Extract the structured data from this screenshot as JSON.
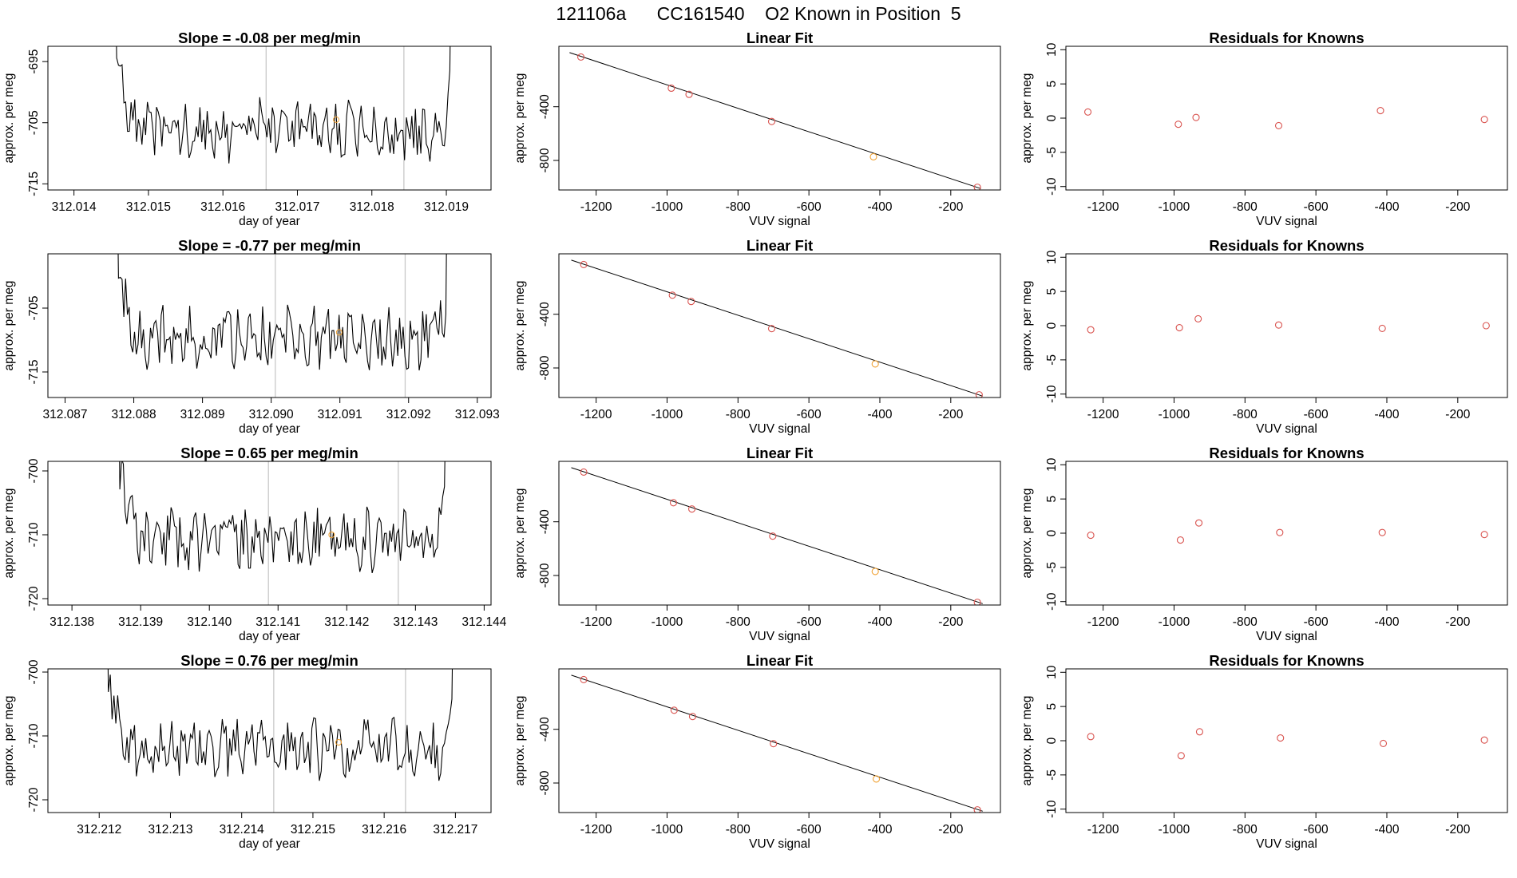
{
  "page_title": "121106a      CC161540    O2 Known in Position  5",
  "colors": {
    "known": "#d9534f",
    "highlight": "#f0a030",
    "trace": "#000000",
    "marker": "#c8c8c8"
  },
  "chart_data": [
    {
      "type": "line",
      "title": "Slope =  -0.08  per meg/min",
      "xlabel": "day of year",
      "ylabel": "approx. per meg",
      "xlim": [
        312.01365,
        312.0196
      ],
      "ylim": [
        -716,
        -692.5
      ],
      "xticks": [
        312.014,
        312.015,
        312.016,
        312.017,
        312.018,
        312.019
      ],
      "xtick_labels": [
        "312.014",
        "312.015",
        "312.016",
        "312.017",
        "312.018",
        "312.019"
      ],
      "yticks": [
        -695,
        -705,
        -715
      ],
      "ytick_labels": [
        "-695",
        "-705",
        "-715"
      ],
      "x_start": 312.0145,
      "x_end": 312.01912,
      "base": -706.2,
      "markers": [
        312.01658,
        312.01843
      ],
      "highlight_point": {
        "x": 312.01752,
        "y": -704.5
      },
      "seed": 3
    },
    {
      "type": "line",
      "title": "Slope =  -0.77  per meg/min",
      "xlabel": "day of year",
      "ylabel": "approx. per meg",
      "xlim": [
        312.08675,
        312.0932
      ],
      "ylim": [
        -719,
        -696.5
      ],
      "xticks": [
        312.087,
        312.088,
        312.089,
        312.09,
        312.091,
        312.092,
        312.093
      ],
      "xtick_labels": [
        "312.087",
        "312.088",
        "312.089",
        "312.090",
        "312.091",
        "312.092",
        "312.093"
      ],
      "yticks": [
        -705,
        -715
      ],
      "ytick_labels": [
        "-705",
        "-715"
      ],
      "x_start": 312.0877,
      "x_end": 312.09262,
      "base": -709.5,
      "markers": [
        312.09006,
        312.09195
      ],
      "highlight_point": {
        "x": 312.09099,
        "y": -708.8
      },
      "seed": 7
    },
    {
      "type": "line",
      "title": "Slope =  0.65  per meg/min",
      "xlabel": "day of year",
      "ylabel": "approx. per meg",
      "xlim": [
        312.13765,
        312.1441
      ],
      "ylim": [
        -721,
        -698.5
      ],
      "xticks": [
        312.138,
        312.139,
        312.14,
        312.141,
        312.142,
        312.143,
        312.144
      ],
      "xtick_labels": [
        "312.138",
        "312.139",
        "312.140",
        "312.141",
        "312.142",
        "312.143",
        "312.144"
      ],
      "yticks": [
        -700,
        -710,
        -720
      ],
      "ytick_labels": [
        "-700",
        "-710",
        "-720"
      ],
      "x_start": 312.13862,
      "x_end": 312.1435,
      "base": -710.8,
      "markers": [
        312.14086,
        312.14275
      ],
      "highlight_point": {
        "x": 312.14178,
        "y": -710.0
      },
      "seed": 11
    },
    {
      "type": "line",
      "title": "Slope =  0.76  per meg/min",
      "xlabel": "day of year",
      "ylabel": "approx. per meg",
      "xlim": [
        312.21128,
        312.2175
      ],
      "ylim": [
        -722,
        -699.5
      ],
      "xticks": [
        312.212,
        312.213,
        312.214,
        312.215,
        312.216,
        312.217
      ],
      "xtick_labels": [
        "312.212",
        "312.213",
        "312.214",
        "312.215",
        "312.216",
        "312.217"
      ],
      "yticks": [
        -700,
        -710,
        -720
      ],
      "ytick_labels": [
        "-700",
        "-710",
        "-720"
      ],
      "x_start": 312.21205,
      "x_end": 312.21703,
      "base": -712.0,
      "markers": [
        312.21445,
        312.2163
      ],
      "highlight_point": {
        "x": 312.21536,
        "y": -711.0
      },
      "seed": 19
    },
    {
      "type": "scatter",
      "title": "Linear Fit",
      "xlabel": "VUV signal",
      "ylabel": "approx. per meg",
      "xlim": [
        -1305,
        -60
      ],
      "ylim": [
        -1020,
        50
      ],
      "xticks": [
        -1200,
        -1000,
        -800,
        -600,
        -400,
        -200
      ],
      "xtick_labels": [
        "-1200",
        "-1000",
        "-800",
        "-600",
        "-400",
        "-200"
      ],
      "yticks": [
        -400,
        -800
      ],
      "ytick_labels": [
        "-400",
        "-800"
      ],
      "points": [
        [
          -1243,
          -30
        ],
        [
          -988,
          -262
        ],
        [
          -938,
          -308
        ],
        [
          -705,
          -510
        ],
        [
          -418,
          -773
        ],
        [
          -125,
          -1000
        ]
      ],
      "highlight_index": 4,
      "fit_line": [
        [
          -1275,
          3
        ],
        [
          -115,
          -1010
        ]
      ]
    },
    {
      "type": "scatter",
      "title": "Linear Fit",
      "xlabel": "VUV signal",
      "ylabel": "approx. per meg",
      "xlim": [
        -1305,
        -60
      ],
      "ylim": [
        -1020,
        50
      ],
      "xticks": [
        -1200,
        -1000,
        -800,
        -600,
        -400,
        -200
      ],
      "xtick_labels": [
        "-1200",
        "-1000",
        "-800",
        "-600",
        "-400",
        "-200"
      ],
      "yticks": [
        -400,
        -800
      ],
      "ytick_labels": [
        "-400",
        "-800"
      ],
      "points": [
        [
          -1235,
          -30
        ],
        [
          -985,
          -258
        ],
        [
          -932,
          -305
        ],
        [
          -705,
          -507
        ],
        [
          -413,
          -770
        ],
        [
          -120,
          -1000
        ]
      ],
      "highlight_index": 4,
      "fit_line": [
        [
          -1270,
          3
        ],
        [
          -110,
          -1010
        ]
      ]
    },
    {
      "type": "scatter",
      "title": "Linear Fit",
      "xlabel": "VUV signal",
      "ylabel": "approx. per meg",
      "xlim": [
        -1305,
        -60
      ],
      "ylim": [
        -1020,
        50
      ],
      "xticks": [
        -1200,
        -1000,
        -800,
        -600,
        -400,
        -200
      ],
      "xtick_labels": [
        "-1200",
        "-1000",
        "-800",
        "-600",
        "-400",
        "-200"
      ],
      "yticks": [
        -400,
        -800
      ],
      "ytick_labels": [
        "-400",
        "-800"
      ],
      "points": [
        [
          -1235,
          -30
        ],
        [
          -982,
          -258
        ],
        [
          -930,
          -305
        ],
        [
          -702,
          -507
        ],
        [
          -413,
          -770
        ],
        [
          -125,
          -1000
        ]
      ],
      "highlight_index": 4,
      "fit_line": [
        [
          -1270,
          3
        ],
        [
          -110,
          -1010
        ]
      ]
    },
    {
      "type": "scatter",
      "title": "Linear Fit",
      "xlabel": "VUV signal",
      "ylabel": "approx. per meg",
      "xlim": [
        -1305,
        -60
      ],
      "ylim": [
        -1020,
        50
      ],
      "xticks": [
        -1200,
        -1000,
        -800,
        -600,
        -400,
        -200
      ],
      "xtick_labels": [
        "-1200",
        "-1000",
        "-800",
        "-600",
        "-400",
        "-200"
      ],
      "yticks": [
        -400,
        -800
      ],
      "ytick_labels": [
        "-400",
        "-800"
      ],
      "points": [
        [
          -1235,
          -30
        ],
        [
          -980,
          -258
        ],
        [
          -928,
          -305
        ],
        [
          -700,
          -507
        ],
        [
          -410,
          -770
        ],
        [
          -125,
          -1000
        ]
      ],
      "highlight_index": 4,
      "fit_line": [
        [
          -1270,
          3
        ],
        [
          -110,
          -1010
        ]
      ]
    },
    {
      "type": "scatter",
      "title": "Residuals for Knowns",
      "xlabel": "VUV signal",
      "ylabel": "approx. per meg",
      "xlim": [
        -1305,
        -60
      ],
      "ylim": [
        -10.5,
        10.5
      ],
      "xticks": [
        -1200,
        -1000,
        -800,
        -600,
        -400,
        -200
      ],
      "xtick_labels": [
        "-1200",
        "-1000",
        "-800",
        "-600",
        "-400",
        "-200"
      ],
      "yticks": [
        10,
        5,
        0,
        -5,
        -10
      ],
      "ytick_labels": [
        "10",
        "5",
        "0",
        "-5",
        "-10"
      ],
      "points": [
        [
          -1243,
          0.9
        ],
        [
          -988,
          -0.9
        ],
        [
          -938,
          0.1
        ],
        [
          -705,
          -1.1
        ],
        [
          -418,
          1.1
        ],
        [
          -125,
          -0.2
        ]
      ]
    },
    {
      "type": "scatter",
      "title": "Residuals for Knowns",
      "xlabel": "VUV signal",
      "ylabel": "approx. per meg",
      "xlim": [
        -1305,
        -60
      ],
      "ylim": [
        -10.5,
        10.5
      ],
      "xticks": [
        -1200,
        -1000,
        -800,
        -600,
        -400,
        -200
      ],
      "xtick_labels": [
        "-1200",
        "-1000",
        "-800",
        "-600",
        "-400",
        "-200"
      ],
      "yticks": [
        10,
        5,
        0,
        -5,
        -10
      ],
      "ytick_labels": [
        "10",
        "5",
        "0",
        "-5",
        "-10"
      ],
      "points": [
        [
          -1235,
          -0.6
        ],
        [
          -985,
          -0.3
        ],
        [
          -932,
          1.0
        ],
        [
          -705,
          0.1
        ],
        [
          -413,
          -0.4
        ],
        [
          -120,
          0.0
        ]
      ]
    },
    {
      "type": "scatter",
      "title": "Residuals for Knowns",
      "xlabel": "VUV signal",
      "ylabel": "approx. per meg",
      "xlim": [
        -1305,
        -60
      ],
      "ylim": [
        -10.5,
        10.5
      ],
      "xticks": [
        -1200,
        -1000,
        -800,
        -600,
        -400,
        -200
      ],
      "xtick_labels": [
        "-1200",
        "-1000",
        "-800",
        "-600",
        "-400",
        "-200"
      ],
      "yticks": [
        10,
        5,
        0,
        -5,
        -10
      ],
      "ytick_labels": [
        "10",
        "5",
        "0",
        "-5",
        "-10"
      ],
      "points": [
        [
          -1235,
          -0.3
        ],
        [
          -982,
          -1.0
        ],
        [
          -930,
          1.5
        ],
        [
          -702,
          0.1
        ],
        [
          -413,
          0.1
        ],
        [
          -125,
          -0.2
        ]
      ]
    },
    {
      "type": "scatter",
      "title": "Residuals for Knowns",
      "xlabel": "VUV signal",
      "ylabel": "approx. per meg",
      "xlim": [
        -1305,
        -60
      ],
      "ylim": [
        -10.5,
        10.5
      ],
      "xticks": [
        -1200,
        -1000,
        -800,
        -600,
        -400,
        -200
      ],
      "xtick_labels": [
        "-1200",
        "-1000",
        "-800",
        "-600",
        "-400",
        "-200"
      ],
      "yticks": [
        10,
        5,
        0,
        -5,
        -10
      ],
      "ytick_labels": [
        "10",
        "5",
        "0",
        "-5",
        "-10"
      ],
      "points": [
        [
          -1235,
          0.6
        ],
        [
          -980,
          -2.2
        ],
        [
          -928,
          1.3
        ],
        [
          -700,
          0.4
        ],
        [
          -410,
          -0.4
        ],
        [
          -125,
          0.1
        ]
      ]
    }
  ]
}
